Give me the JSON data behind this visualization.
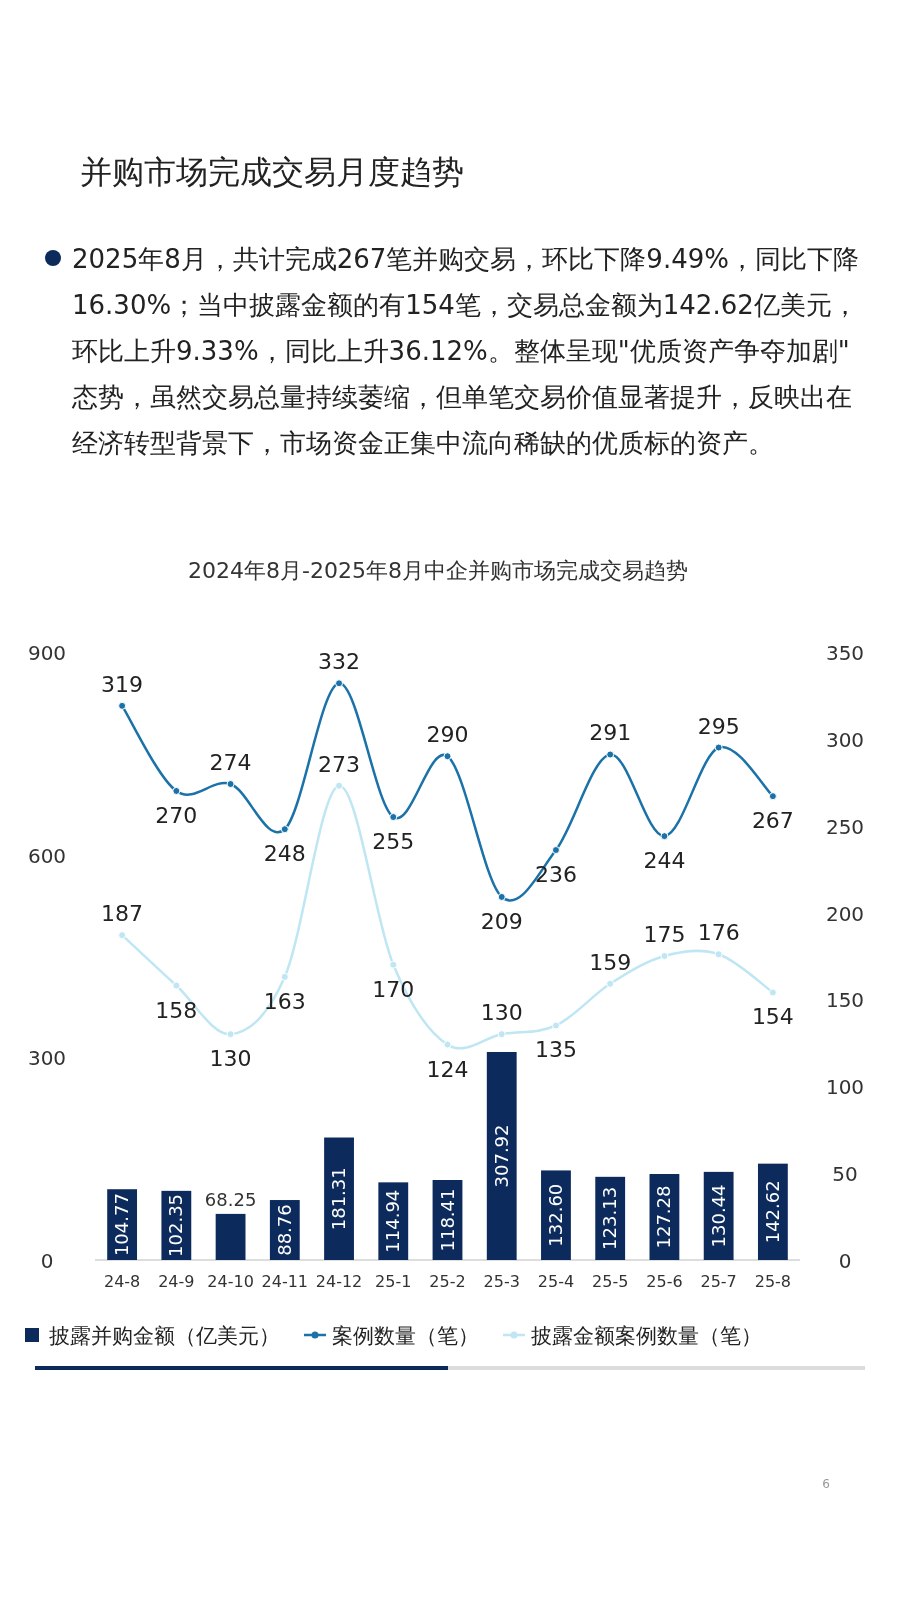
{
  "chart_data": {
    "type": "bar",
    "title": "并购市场完成交易月度趋势",
    "subtitle": "2024年8月-2025年8月中企并购市场完成交易趋势",
    "annotations": [
      "2025年8月，共计完成267笔并购交易，环比下降9.49%，同比下降16.30%；当中披露金额的有154笔，交易总金额为142.62亿美元，环比上升9.33%，同比上升36.12%。整体呈现\"优质资产争夺加剧\"态势，虽然交易总量持续萎缩，但单笔交易价值显著提升，反映出在经济转型背景下，市场资金正集中流向稀缺的优质标的资产。",
      "6"
    ],
    "categories": [
      "24-8",
      "24-9",
      "24-10",
      "24-11",
      "24-12",
      "25-1",
      "25-2",
      "25-3",
      "25-4",
      "25-5",
      "25-6",
      "25-7",
      "25-8"
    ],
    "series": [
      {
        "name": "披露并购金额（亿美元）",
        "color": "#0c2b5c",
        "values": [
          104.77,
          102.35,
          68.25,
          88.76,
          181.31,
          114.94,
          118.41,
          307.92,
          132.6,
          123.13,
          127.28,
          130.44,
          142.62
        ],
        "value_labels": [
          "104.77",
          "102.35",
          "68.25",
          "88.76",
          "181.31",
          "114.94",
          "118.41",
          "307.92",
          "132.60",
          "123.13",
          "127.28",
          "130.44",
          "142.62"
        ]
      },
      {
        "name": "案例数量（笔）",
        "type": "line",
        "axis": "y2",
        "color": "#1a72a8",
        "values": [
          319,
          270,
          274,
          248,
          332,
          255,
          290,
          209,
          236,
          291,
          244,
          295,
          267
        ]
      },
      {
        "name": "披露金额案例数量（笔）",
        "type": "line",
        "axis": "y2",
        "color": "#bfe6f3",
        "values": [
          187,
          158,
          130,
          163,
          273,
          170,
          124,
          130,
          135,
          159,
          175,
          176,
          154
        ]
      }
    ],
    "ylim": [
      0,
      900
    ],
    "yticks": [
      0,
      300,
      600,
      900
    ],
    "y2lim": [
      0,
      350
    ],
    "y2ticks": [
      0,
      50,
      100,
      150,
      200,
      250,
      300,
      350
    ],
    "data_labels": true,
    "legend": "bottom",
    "marker": "circle"
  }
}
